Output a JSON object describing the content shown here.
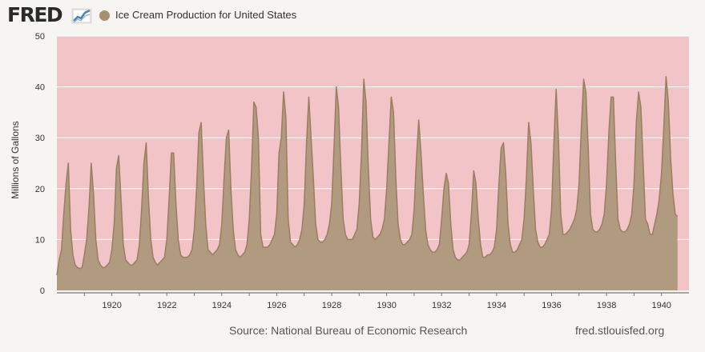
{
  "header": {
    "logo_text": "FRED",
    "logo_icon": "line-chart-icon",
    "legend_label": "Ice Cream Production for United States"
  },
  "footer": {
    "source": "Source: National Bureau of Economic Research",
    "site": "fred.stlouisfed.org"
  },
  "colors": {
    "series_fill": "#b09a80",
    "series_line": "#9a7e60",
    "plot_background": "#f2c4c8",
    "gridline": "#ffffff"
  },
  "chart_data": {
    "type": "area",
    "title": "",
    "xlabel": "",
    "ylabel": "Millions of Gallons",
    "xlim": [
      1918.0,
      1941.0
    ],
    "ylim": [
      0,
      50
    ],
    "y_ticks": [
      0,
      10,
      20,
      30,
      40,
      50
    ],
    "x_ticks": [
      1920,
      1922,
      1924,
      1926,
      1928,
      1930,
      1932,
      1934,
      1936,
      1938,
      1940
    ],
    "grid": true,
    "legend_position": "top-left",
    "frequency": "monthly",
    "series": [
      {
        "name": "Ice Cream Production for United States",
        "x_start": "1918-01",
        "values": [
          3,
          6,
          8,
          15,
          21,
          25,
          12,
          7,
          5,
          4.5,
          4.3,
          4.5,
          7,
          10,
          16,
          25,
          19,
          10,
          6,
          5,
          4.5,
          4.5,
          5,
          5.5,
          8,
          13,
          24,
          26.5,
          18,
          9,
          6,
          5.5,
          5,
          5,
          5.5,
          6,
          9,
          16,
          25,
          29,
          18,
          10,
          6.5,
          5.5,
          5,
          5.5,
          6,
          6.5,
          10,
          18,
          27,
          27,
          17,
          10,
          7,
          6.5,
          6.5,
          6.5,
          7,
          8,
          12,
          20,
          31,
          33,
          22,
          13,
          8,
          7.5,
          7,
          7.5,
          8,
          9,
          13,
          22,
          30,
          31.5,
          20,
          12,
          8,
          7,
          6.5,
          7,
          7.5,
          9,
          14,
          24,
          37,
          36,
          30,
          11,
          8.5,
          8.5,
          8.5,
          9,
          10,
          11,
          15,
          27,
          30,
          39,
          34,
          14,
          9.5,
          9,
          8.5,
          9,
          10,
          12,
          17,
          29,
          38,
          30,
          22,
          13,
          10,
          9.5,
          9.5,
          10,
          11,
          13,
          17,
          28,
          40,
          36,
          24,
          14,
          11,
          10,
          10,
          10,
          11,
          12,
          17,
          27,
          41.5,
          37,
          24,
          14,
          10.5,
          10,
          10.5,
          11,
          12,
          14,
          20,
          29,
          38,
          35,
          22,
          13,
          10,
          9,
          9,
          9.5,
          10,
          11,
          16,
          26,
          33.5,
          27,
          19,
          12,
          9,
          8,
          7.5,
          7.5,
          8,
          9,
          14,
          20,
          23,
          21,
          13,
          8,
          6.5,
          6,
          6,
          6.5,
          7,
          7.5,
          9,
          15,
          23.5,
          21,
          14,
          9,
          6.5,
          6.5,
          7,
          7,
          7.5,
          8.5,
          12,
          21,
          28,
          29,
          23,
          13,
          9,
          7.5,
          7.5,
          8,
          9,
          10,
          14,
          22,
          33,
          29,
          20,
          12,
          9.5,
          8.5,
          8.5,
          9,
          10,
          11,
          16,
          29,
          39.5,
          30,
          15,
          11,
          11,
          11.5,
          12,
          13,
          14,
          16,
          21,
          32,
          41.5,
          39,
          28,
          15,
          12,
          11.5,
          11.5,
          12,
          13,
          15,
          21,
          31,
          38,
          38,
          25,
          14,
          12,
          11.5,
          11.5,
          12,
          13,
          15,
          21,
          33,
          39,
          36,
          25,
          14,
          13,
          11,
          11,
          13,
          15,
          18,
          23,
          32,
          42,
          37,
          26,
          19,
          15,
          14.5
        ]
      }
    ]
  }
}
